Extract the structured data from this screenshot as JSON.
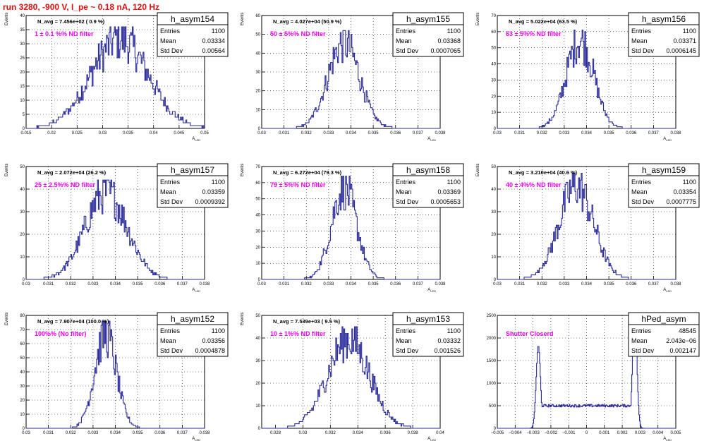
{
  "page": {
    "title": "run 3280,  -900 V, I_pe ~ 0.18 nA, 120 Hz"
  },
  "chart_data": [
    {
      "type": "histogram",
      "name": "h_asym154",
      "navg_text": "N_avg = 7.456e+02 ( 0.9 %)",
      "annotation": "1 ± 0.1 %% ND filter",
      "stats": {
        "Entries": "1100",
        "Mean": "0.03334",
        "Std Dev": "0.00564"
      },
      "xlim": [
        0.015,
        0.05
      ],
      "ylim": [
        0,
        40
      ],
      "xticks": [
        "0.015",
        "0.02",
        "0.025",
        "0.03",
        "0.035",
        "0.04",
        "0.045",
        "0.05"
      ],
      "yticks": [
        "0",
        "5",
        "10",
        "15",
        "20",
        "25",
        "30",
        "35",
        "40"
      ],
      "xlabel": "A_LED",
      "ylabel": "Events",
      "mean": 0.03334,
      "sd": 0.00564,
      "peak": 36
    },
    {
      "type": "histogram",
      "name": "h_asym155",
      "navg_text": "N_avg = 4.027e+04 (50.9 %)",
      "annotation": "50 ± 5%% ND filter",
      "stats": {
        "Entries": "1100",
        "Mean": "0.03368",
        "Std Dev": "0.0007065"
      },
      "xlim": [
        0.03,
        0.038
      ],
      "ylim": [
        0,
        60
      ],
      "xticks": [
        "0.03",
        "0.031",
        "0.032",
        "0.033",
        "0.034",
        "0.035",
        "0.036",
        "0.037",
        "0.038"
      ],
      "yticks": [
        "0",
        "10",
        "20",
        "30",
        "40",
        "50",
        "60"
      ],
      "xlabel": "A_LED",
      "ylabel": "Events",
      "mean": 0.03368,
      "sd": 0.0007065,
      "peak": 52
    },
    {
      "type": "histogram",
      "name": "h_asym156",
      "navg_text": "N_avg = 5.022e+04 (63.5 %)",
      "annotation": "63 ± 5%% ND filter",
      "stats": {
        "Entries": "1100",
        "Mean": "0.03371",
        "Std Dev": "0.0006145"
      },
      "xlim": [
        0.03,
        0.038
      ],
      "ylim": [
        0,
        70
      ],
      "xticks": [
        "0.03",
        "0.031",
        "0.032",
        "0.033",
        "0.034",
        "0.035",
        "0.036",
        "0.037",
        "0.038"
      ],
      "yticks": [
        "0",
        "10",
        "20",
        "30",
        "40",
        "50",
        "60",
        "70"
      ],
      "xlabel": "A_LED",
      "ylabel": "Events",
      "mean": 0.03371,
      "sd": 0.0006145,
      "peak": 62
    },
    {
      "type": "histogram",
      "name": "h_asym157",
      "navg_text": "N_avg = 2.072e+04 (26.2 %)",
      "annotation": "25 ± 2.5%% ND filter",
      "stats": {
        "Entries": "1100",
        "Mean": "0.03359",
        "Std Dev": "0.0009392"
      },
      "xlim": [
        0.03,
        0.038
      ],
      "ylim": [
        0,
        50
      ],
      "xticks": [
        "0.03",
        "0.031",
        "0.032",
        "0.033",
        "0.034",
        "0.035",
        "0.036",
        "0.037",
        "0.038"
      ],
      "yticks": [
        "0",
        "10",
        "20",
        "30",
        "40",
        "50"
      ],
      "xlabel": "A_LED",
      "ylabel": "Events",
      "mean": 0.03359,
      "sd": 0.0009392,
      "peak": 44
    },
    {
      "type": "histogram",
      "name": "h_asym158",
      "navg_text": "N_avg = 6.272e+04 (79.3 %)",
      "annotation": "79 ± 5%% ND filter",
      "stats": {
        "Entries": "1100",
        "Mean": "0.03369",
        "Std Dev": "0.0005653"
      },
      "xlim": [
        0.03,
        0.038
      ],
      "ylim": [
        0,
        70
      ],
      "xticks": [
        "0.03",
        "0.031",
        "0.032",
        "0.033",
        "0.034",
        "0.035",
        "0.036",
        "0.037",
        "0.038"
      ],
      "yticks": [
        "0",
        "10",
        "20",
        "30",
        "40",
        "50",
        "60",
        "70"
      ],
      "xlabel": "A_LED",
      "ylabel": "Events",
      "mean": 0.03369,
      "sd": 0.0005653,
      "peak": 64
    },
    {
      "type": "histogram",
      "name": "h_asym159",
      "navg_text": "N_avg = 3.210e+04 (40.6 %)",
      "annotation": "40 ± 4%% ND filter",
      "stats": {
        "Entries": "1100",
        "Mean": "0.03354",
        "Std Dev": "0.0007775"
      },
      "xlim": [
        0.03,
        0.038
      ],
      "ylim": [
        0,
        50
      ],
      "xticks": [
        "0.03",
        "0.031",
        "0.032",
        "0.033",
        "0.034",
        "0.035",
        "0.036",
        "0.037",
        "0.038"
      ],
      "yticks": [
        "0",
        "10",
        "20",
        "30",
        "40",
        "50"
      ],
      "xlabel": "A_LED",
      "ylabel": "Events",
      "mean": 0.03354,
      "sd": 0.0007775,
      "peak": 47
    },
    {
      "type": "histogram",
      "name": "h_asym152",
      "navg_text": "N_avg = 7.907e+04 (100.0 %)",
      "annotation": "100%% (No filter)",
      "stats": {
        "Entries": "1100",
        "Mean": "0.03356",
        "Std Dev": "0.0004878"
      },
      "xlim": [
        0.03,
        0.038
      ],
      "ylim": [
        0,
        80
      ],
      "xticks": [
        "0.03",
        "0.031",
        "0.032",
        "0.033",
        "0.034",
        "0.035",
        "0.036",
        "0.037",
        "0.038"
      ],
      "yticks": [
        "0",
        "10",
        "20",
        "30",
        "40",
        "50",
        "60",
        "70",
        "80"
      ],
      "xlabel": "A_LED",
      "ylabel": "Events",
      "mean": 0.03356,
      "sd": 0.0004878,
      "peak": 76
    },
    {
      "type": "histogram",
      "name": "h_asym153",
      "navg_text": "N_avg = 7.539e+03 ( 9.5 %)",
      "annotation": "10 ± 1%% ND filter",
      "stats": {
        "Entries": "1100",
        "Mean": "0.03332",
        "Std Dev": "0.001526"
      },
      "xlim": [
        0.027,
        0.04
      ],
      "ylim": [
        0,
        50
      ],
      "xticks": [
        "0.028",
        "0.03",
        "0.032",
        "0.034",
        "0.036",
        "0.038",
        "0.04"
      ],
      "xtick_values": [
        0.028,
        0.03,
        0.032,
        0.034,
        0.036,
        0.038,
        0.04
      ],
      "yticks": [
        "0",
        "10",
        "20",
        "30",
        "40",
        "50"
      ],
      "xlabel": "A_LED",
      "ylabel": "Events",
      "mean": 0.03332,
      "sd": 0.001526,
      "peak": 45
    },
    {
      "type": "histogram",
      "name": "hPed_asym",
      "navg_text": "",
      "annotation": "Shutter Closerd",
      "stats": {
        "Entries": "48545",
        "Mean": "2.043e−06",
        "Std Dev": "0.002147"
      },
      "xlim": [
        -0.005,
        0.005
      ],
      "ylim": [
        0,
        2500
      ],
      "xticks": [
        "−0.005",
        "−0.004",
        "−0.003",
        "−0.002",
        "−0.001",
        "0",
        "0.001",
        "0.002",
        "0.003",
        "0.004",
        "0.005"
      ],
      "yticks": [
        "0",
        "500",
        "1000",
        "1500",
        "2000",
        "2500"
      ],
      "xlabel": "A_LED",
      "ylabel": "",
      "pedestal": true
    }
  ]
}
